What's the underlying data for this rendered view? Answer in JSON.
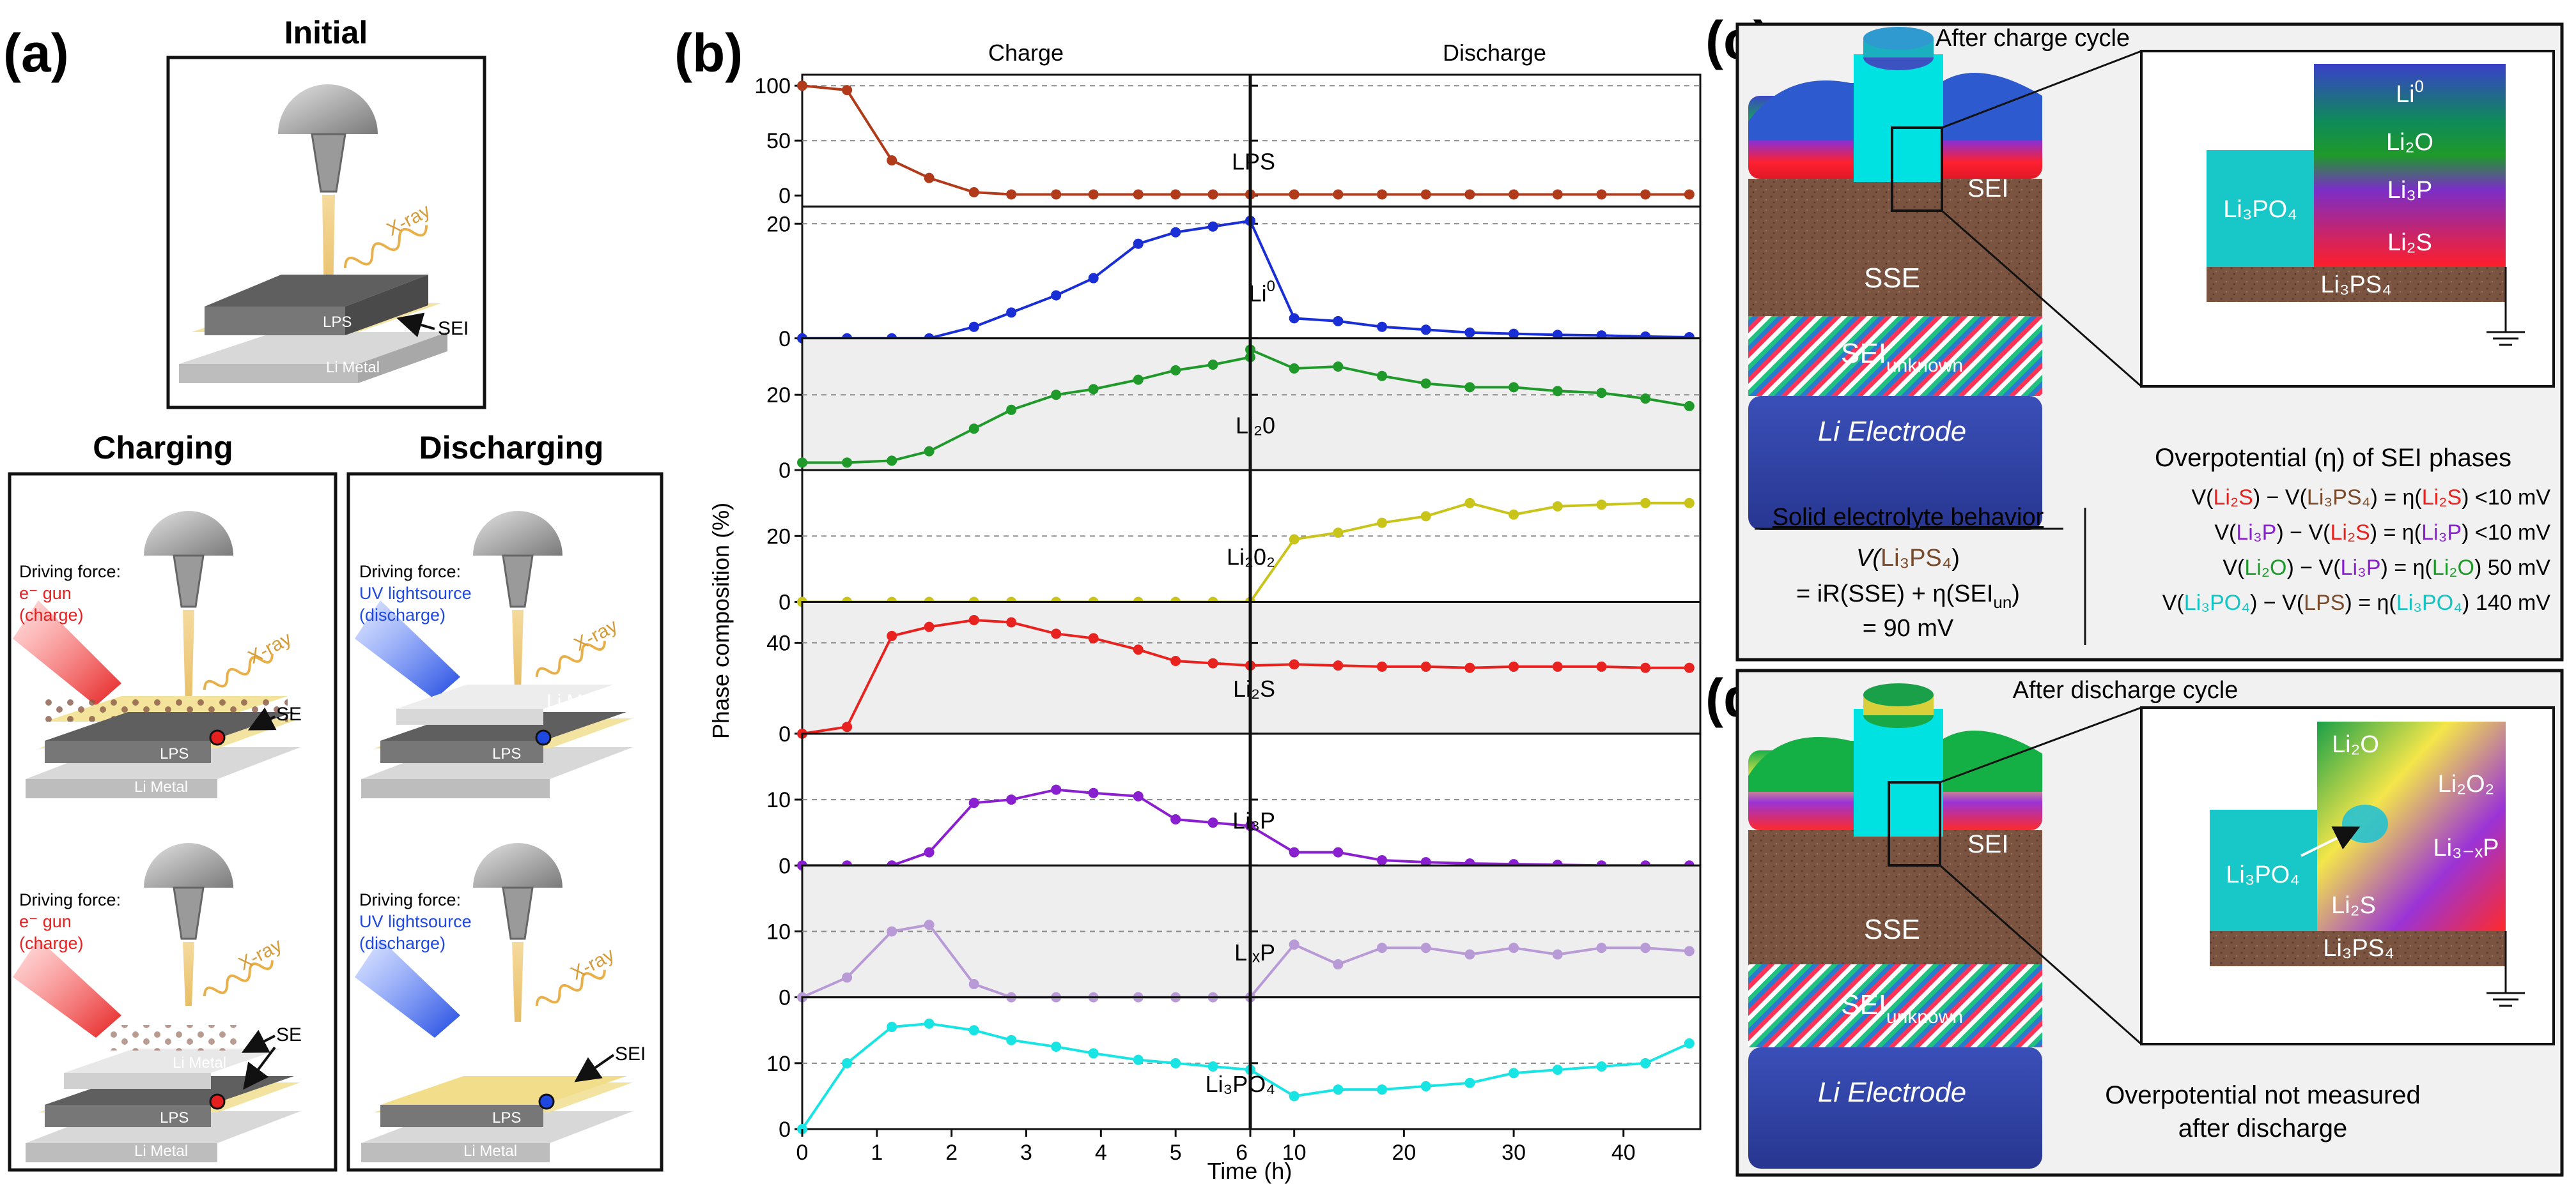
{
  "panel_labels": {
    "a": "(a)",
    "b": "(b)",
    "c": "(c)",
    "d": "(d)"
  },
  "panel_a": {
    "initial": {
      "title": "Initial",
      "xray": "X-ray",
      "lps": "LPS",
      "sei": "SEI",
      "li_metal": "Li Metal"
    },
    "charging": {
      "title": "Charging",
      "driving_force": "Driving force:",
      "source": "e⁻ gun",
      "mode": "(charge)",
      "xray": "X-ray",
      "lps": "LPS",
      "li_metal": "Li Metal",
      "se": "SE",
      "se2": "SE"
    },
    "discharging": {
      "title": "Discharging",
      "driving_force": "Driving force:",
      "source": "UV lightsource",
      "mode": "(discharge)",
      "xray": "X-ray",
      "lps": "LPS",
      "li_metal": "Li Metal",
      "sei": "SEI"
    }
  },
  "panel_b": {
    "charge_title": "Charge",
    "discharge_title": "Discharge",
    "ylabel": "Phase composition (%)",
    "xlabel": "Time (h)"
  },
  "panel_c": {
    "title": "After charge cycle",
    "block": {
      "sei": "SEI",
      "sse": "SSE",
      "sei_unknown": "SEI",
      "sei_unknown_sub": "unknown",
      "electrode": "Li Electrode"
    },
    "inset": {
      "li0": "Li",
      "li0_sup": "0",
      "li2o": "Li₂O",
      "li3p": "Li₃P",
      "li2s": "Li₂S",
      "li3po4": "Li₃PO₄",
      "li3ps4": "Li₃PS₄"
    },
    "solid_title": "Solid electrolyte behavior",
    "solid_v_label": "V(",
    "solid_v_species": "Li₃PS₄",
    "solid_eq": "= iR(SSE) + η(SEI",
    "solid_eq_sub": "un",
    "solid_value": "= 90 mV",
    "overpotential_title": "Overpotential (η) of SEI phases",
    "overpotentials": [
      {
        "a": "Li₂S",
        "b": "Li₃PS₄",
        "c": "Li₂S",
        "value": "<10 mV"
      },
      {
        "a": "Li₃P",
        "b": "Li₂S",
        "c": "Li₃P",
        "value": "<10 mV"
      },
      {
        "a": "Li₂O",
        "b": "Li₃P",
        "c": "Li₂O",
        "value": "50 mV"
      },
      {
        "a": "Li₃PO₄",
        "b": "LPS",
        "c": "Li₃PO₄",
        "value": "140 mV"
      }
    ]
  },
  "panel_d": {
    "title": "After discharge cycle",
    "block": {
      "sei": "SEI",
      "sse": "SSE",
      "sei_unknown": "SEI",
      "sei_unknown_sub": "unknown",
      "electrode": "Li Electrode"
    },
    "inset": {
      "li2o": "Li₂O",
      "li2o2": "Li₂O₂",
      "li3xp": "Li₃₋ₓP",
      "li2s": "Li₂S",
      "li3po4": "Li₃PO₄",
      "li3ps4": "Li₃PS₄"
    },
    "note_line1": "Overpotential not measured",
    "note_line2": "after discharge"
  },
  "colors": {
    "LPS": "#b03a1a",
    "Li0": "#1a2ed6",
    "Li2O": "#1f9a2a",
    "Li2O2": "#c9c41a",
    "Li2S": "#e8231f",
    "Li3P": "#8a1fd0",
    "LixP": "#b79ad6",
    "Li3PO4": "#18e4e4"
  },
  "chart_data": {
    "type": "line",
    "title": "",
    "xlabel": "Time (h)",
    "ylabel": "Phase composition (%)",
    "charge_xlim": [
      0,
      6
    ],
    "charge_xticks": [
      0,
      1,
      2,
      3,
      4,
      5,
      6
    ],
    "discharge_xlim": [
      6,
      47
    ],
    "discharge_xticks": [
      10,
      20,
      30,
      40
    ],
    "charge_x": [
      0,
      0.6,
      1.2,
      1.7,
      2.3,
      2.8,
      3.4,
      3.9,
      4.5,
      5.0,
      5.5,
      6.0
    ],
    "discharge_x": [
      6,
      10,
      14,
      18,
      22,
      26,
      30,
      34,
      38,
      42,
      46
    ],
    "series": [
      {
        "name": "LPS",
        "label": "LPS",
        "color": "#b03a1a",
        "ylim": [
          -10,
          110
        ],
        "yticks": [
          0,
          50,
          100
        ],
        "charge": [
          100,
          96,
          32,
          16,
          3,
          1,
          1,
          1,
          1,
          1,
          1,
          1
        ],
        "discharge": [
          1,
          1,
          1,
          1,
          1,
          1,
          1,
          1,
          1,
          1,
          1
        ]
      },
      {
        "name": "Li0",
        "label": "Li",
        "label_sup": "0",
        "color": "#1a2ed6",
        "ylim": [
          0,
          23
        ],
        "yticks": [
          0,
          20
        ],
        "charge": [
          0,
          0,
          0,
          0,
          2,
          4.5,
          7.5,
          10.5,
          16.5,
          18.5,
          19.5,
          20.5
        ],
        "discharge": [
          20.5,
          3.5,
          3,
          2,
          1.5,
          1,
          0.8,
          0.6,
          0.5,
          0.3,
          0.2
        ]
      },
      {
        "name": "Li2O",
        "label": "Li₂0",
        "color": "#1f9a2a",
        "ylim": [
          0,
          35
        ],
        "yticks": [
          0,
          20
        ],
        "charge": [
          2,
          2,
          2.5,
          5,
          11,
          16,
          20,
          21.5,
          24,
          26.5,
          28,
          30
        ],
        "discharge": [
          32,
          27,
          27.5,
          25,
          23,
          22,
          22,
          21,
          20.5,
          19,
          17
        ]
      },
      {
        "name": "Li2O2",
        "label": "Li₂0₂",
        "color": "#c9c41a",
        "ylim": [
          0,
          40
        ],
        "yticks": [
          0,
          20
        ],
        "charge": [
          0,
          0,
          0,
          0,
          0,
          0,
          0,
          0,
          0,
          0,
          0,
          0
        ],
        "discharge": [
          0,
          19,
          21,
          24,
          26,
          30,
          26.5,
          29,
          29.5,
          30,
          30
        ]
      },
      {
        "name": "Li2S",
        "label": "Li₂S",
        "color": "#e8231f",
        "ylim": [
          0,
          58
        ],
        "yticks": [
          0,
          40
        ],
        "charge": [
          0,
          3,
          43,
          47,
          50,
          49,
          44,
          42,
          37,
          32,
          31,
          30
        ],
        "discharge": [
          30,
          30.5,
          30,
          29.5,
          29.5,
          29,
          29.5,
          29.5,
          29.5,
          29,
          29
        ]
      },
      {
        "name": "Li3P",
        "label": "Li₃P",
        "color": "#8a1fd0",
        "ylim": [
          0,
          20
        ],
        "yticks": [
          0,
          10
        ],
        "charge": [
          0,
          0,
          0,
          2,
          9.5,
          10,
          11.5,
          11,
          10.5,
          7,
          6.5,
          6
        ],
        "discharge": [
          6,
          2,
          2,
          0.8,
          0.5,
          0.3,
          0.2,
          0.1,
          0,
          0,
          0
        ]
      },
      {
        "name": "LixP",
        "label": "LiₓP",
        "color": "#b79ad6",
        "ylim": [
          0,
          20
        ],
        "yticks": [
          0,
          10
        ],
        "charge": [
          0,
          3,
          10,
          11,
          2,
          0,
          0,
          0,
          0,
          0,
          0,
          0
        ],
        "discharge": [
          0,
          8,
          5,
          7.5,
          7.5,
          6.5,
          7.5,
          6.5,
          7.5,
          7.5,
          7
        ]
      },
      {
        "name": "Li3PO4",
        "label": "Li₃PO₄",
        "color": "#18e4e4",
        "ylim": [
          0,
          20
        ],
        "yticks": [
          0,
          10
        ],
        "charge": [
          0,
          10,
          15.5,
          16,
          15,
          13.5,
          12.5,
          11.5,
          10.5,
          10,
          9.5,
          9
        ],
        "discharge": [
          9,
          5,
          6,
          6,
          6.5,
          7,
          8.5,
          9,
          9.5,
          10,
          13
        ]
      }
    ]
  }
}
